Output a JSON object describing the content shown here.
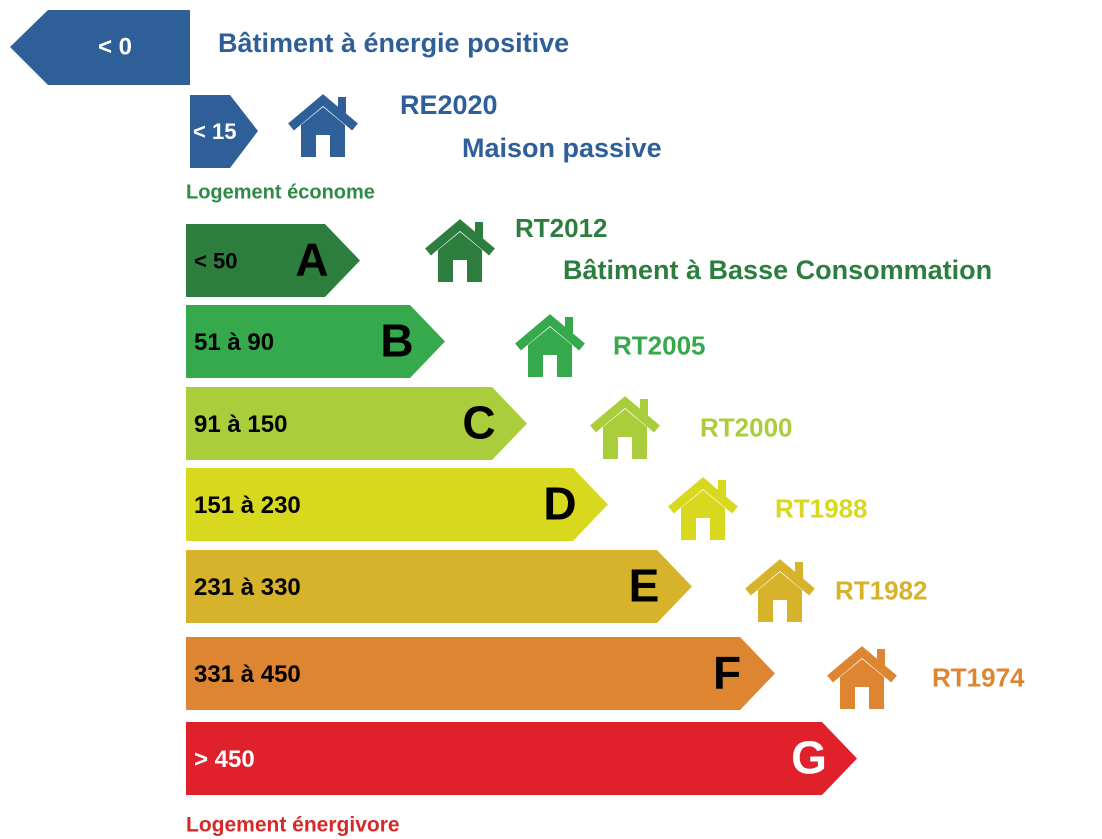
{
  "top": {
    "value": "< 0",
    "label": "Bâtiment à énergie positive",
    "color": "#2f5f98"
  },
  "passive": {
    "value": "< 15",
    "standard": "RE2020",
    "label": "Maison passive",
    "color": "#2f5f98"
  },
  "economical_label": "Logement économe",
  "economical_color": "#2e8b45",
  "classes": [
    {
      "range": "< 50",
      "letter": "A",
      "standard": "RT2012",
      "label": "Bâtiment à Basse Consommation",
      "color": "#2d7e3e"
    },
    {
      "range": "51 à 90",
      "letter": "B",
      "standard": "RT2005",
      "color": "#35a94b"
    },
    {
      "range": "91 à 150",
      "letter": "C",
      "standard": "RT2000",
      "color": "#a9cd3b"
    },
    {
      "range": "151 à 230",
      "letter": "D",
      "standard": "RT1988",
      "color": "#d8d91f"
    },
    {
      "range": "231 à 330",
      "letter": "E",
      "standard": "RT1982",
      "color": "#d7b22b"
    },
    {
      "range": "331 à 450",
      "letter": "F",
      "standard": "RT1974",
      "color": "#de8531"
    },
    {
      "range": "> 450",
      "letter": "G",
      "color": "#e0202a"
    }
  ],
  "energy_hungry_label": "Logement énergivore",
  "energy_hungry_color": "#d42a2a"
}
